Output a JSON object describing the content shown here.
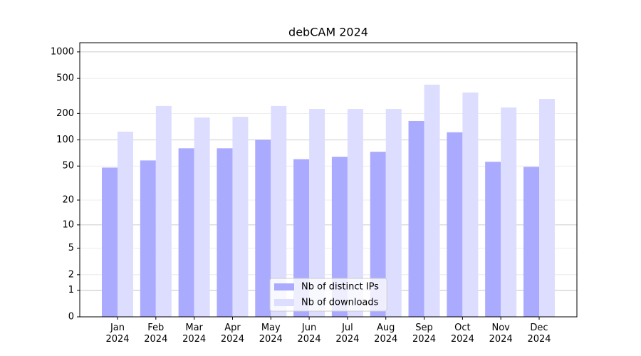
{
  "chart_data": {
    "type": "bar",
    "title": "debCAM 2024",
    "categories": [
      "Jan 2024",
      "Feb 2024",
      "Mar 2024",
      "Apr 2024",
      "May 2024",
      "Jun 2024",
      "Jul 2024",
      "Aug 2024",
      "Sep 2024",
      "Oct 2024",
      "Nov 2024",
      "Dec 2024"
    ],
    "series": [
      {
        "name": "Nb of distinct IPs",
        "color": "#aaaaff",
        "values": [
          48,
          58,
          80,
          80,
          100,
          60,
          64,
          73,
          164,
          122,
          56,
          49
        ]
      },
      {
        "name": "Nb of downloads",
        "color": "#ddddff",
        "values": [
          124,
          243,
          180,
          183,
          243,
          225,
          225,
          225,
          425,
          346,
          234,
          292
        ]
      }
    ],
    "yscale": "log1p",
    "ylim": [
      0,
      1270
    ],
    "yticks": [
      0,
      1,
      2,
      5,
      10,
      20,
      50,
      100,
      200,
      500,
      1000
    ],
    "grid": true,
    "legend": "lower center"
  }
}
